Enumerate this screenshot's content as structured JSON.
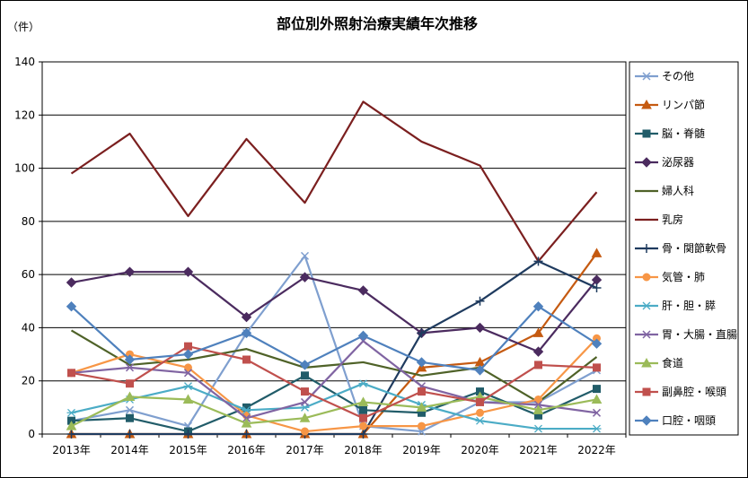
{
  "chart_data": {
    "type": "line",
    "title": "部位別外照射治療実績年次推移",
    "ylabel": "（件）",
    "xlabel": "",
    "categories": [
      "2013年",
      "2014年",
      "2015年",
      "2016年",
      "2017年",
      "2018年",
      "2019年",
      "2020年",
      "2021年",
      "2022年"
    ],
    "ylim": [
      0,
      140
    ],
    "yticks": [
      0,
      20,
      40,
      60,
      80,
      100,
      120,
      140
    ],
    "grid": true,
    "legend_position": "right",
    "series": [
      {
        "name": "その他",
        "color": "#7f9fcf",
        "marker": "x",
        "values": [
          5,
          9,
          3,
          38,
          67,
          3,
          1,
          12,
          12,
          24
        ]
      },
      {
        "name": "リンパ節",
        "color": "#c55a11",
        "marker": "triangle",
        "values": [
          0,
          0,
          0,
          0,
          0,
          0,
          25,
          27,
          38,
          68
        ]
      },
      {
        "name": "脳・脊髄",
        "color": "#215c69",
        "marker": "square",
        "values": [
          5,
          6,
          1,
          10,
          22,
          9,
          8,
          16,
          7,
          17
        ]
      },
      {
        "name": "泌尿器",
        "color": "#4b2b5f",
        "marker": "diamond",
        "values": [
          57,
          61,
          61,
          44,
          59,
          54,
          38,
          40,
          31,
          58
        ]
      },
      {
        "name": "婦人科",
        "color": "#4f6228",
        "marker": "none",
        "values": [
          39,
          26,
          28,
          32,
          25,
          27,
          22,
          25,
          12,
          29
        ]
      },
      {
        "name": "乳房",
        "color": "#7b1f1f",
        "marker": "none",
        "values": [
          98,
          113,
          82,
          111,
          87,
          125,
          110,
          101,
          65,
          91
        ]
      },
      {
        "name": "骨・関節軟骨",
        "color": "#1f3b5f",
        "marker": "plus",
        "values": [
          0,
          0,
          0,
          0,
          0,
          0,
          38,
          50,
          65,
          55
        ]
      },
      {
        "name": "気管・肺",
        "color": "#f79646",
        "marker": "circle",
        "values": [
          23,
          30,
          25,
          7,
          1,
          3,
          3,
          8,
          13,
          36
        ]
      },
      {
        "name": "肝・胆・膵",
        "color": "#4bacc6",
        "marker": "star",
        "values": [
          8,
          13,
          18,
          9,
          10,
          19,
          11,
          5,
          2,
          2
        ]
      },
      {
        "name": "胃・大腸・直腸",
        "color": "#8064a2",
        "marker": "x",
        "values": [
          23,
          25,
          23,
          6,
          12,
          35,
          18,
          12,
          11,
          8
        ]
      },
      {
        "name": "食道",
        "color": "#9bbb59",
        "marker": "triangle",
        "values": [
          3,
          14,
          13,
          4,
          6,
          12,
          10,
          14,
          9,
          13
        ]
      },
      {
        "name": "副鼻腔・喉頭",
        "color": "#c0504d",
        "marker": "square",
        "values": [
          23,
          19,
          33,
          28,
          16,
          6,
          16,
          12,
          26,
          25
        ]
      },
      {
        "name": "口腔・咽頭",
        "color": "#4f81bd",
        "marker": "diamond",
        "values": [
          48,
          28,
          30,
          38,
          26,
          37,
          27,
          24,
          48,
          34
        ]
      }
    ]
  }
}
